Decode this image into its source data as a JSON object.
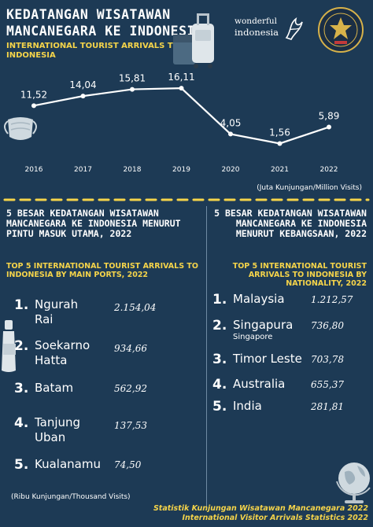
{
  "header": {
    "title": "KEDATANGAN WISATAWAN MANCANEGARA KE INDONESIA",
    "subtitle": "INTERNATIONAL TOURIST ARRIVALS TO INDONESIA",
    "brand_line1": "wonderful",
    "brand_line2": "indonesia"
  },
  "icons": {
    "suitcase": "suitcase-icon",
    "mask": "face-mask-icon",
    "bottle": "bottle-icon",
    "globe": "globe-icon",
    "emblem": "ministry-emblem-icon"
  },
  "colors": {
    "background": "#1d3a55",
    "accent": "#f5d44a",
    "text": "#ffffff",
    "line": "#ffffff"
  },
  "chart_data": [
    {
      "type": "line",
      "x": [
        "2016",
        "2017",
        "2018",
        "2019",
        "2020",
        "2021",
        "2022"
      ],
      "values": [
        11.52,
        14.04,
        15.81,
        16.11,
        4.05,
        1.56,
        5.89
      ],
      "data_labels": [
        "11,52",
        "14,04",
        "15,81",
        "16,11",
        "4,05",
        "1,56",
        "5,89"
      ],
      "unit": "(Juta Kunjungan/Million Visits)",
      "ylim": [
        0,
        18
      ],
      "grid": false
    },
    {
      "type": "table",
      "title": "5 BESAR KEDATANGAN WISATAWAN MANCANEGARA KE INDONESIA MENURUT PINTU MASUK UTAMA, 2022",
      "subtitle": "TOP 5 INTERNATIONAL TOURIST ARRIVALS TO INDONESIA BY MAIN PORTS, 2022",
      "unit": "(Ribu Kunjungan/Thousand Visits)",
      "rows": [
        {
          "rank": "1.",
          "name": "Ngurah Rai",
          "value": "2.154,04"
        },
        {
          "rank": "2.",
          "name": "Soekarno Hatta",
          "value": "934,66"
        },
        {
          "rank": "3.",
          "name": "Batam",
          "value": "562,92"
        },
        {
          "rank": "4.",
          "name": "Tanjung Uban",
          "value": "137,53"
        },
        {
          "rank": "5.",
          "name": "Kualanamu",
          "value": "74,50"
        }
      ]
    },
    {
      "type": "table",
      "title": "5 BESAR KEDATANGAN WISATAWAN MANCANEGARA KE INDONESIA MENURUT KEBANGSAAN, 2022",
      "subtitle": "TOP 5 INTERNATIONAL TOURIST ARRIVALS TO INDONESIA BY NATIONALITY, 2022",
      "rows": [
        {
          "rank": "1.",
          "name": "Malaysia",
          "alias": "",
          "value": "1.212,57"
        },
        {
          "rank": "2.",
          "name": "Singapura",
          "alias": "Singapore",
          "value": "736,80"
        },
        {
          "rank": "3.",
          "name": "Timor Leste",
          "alias": "",
          "value": "703,78"
        },
        {
          "rank": "4.",
          "name": "Australia",
          "alias": "",
          "value": "655,37"
        },
        {
          "rank": "5.",
          "name": "India",
          "alias": "",
          "value": "281,81"
        }
      ]
    }
  ],
  "footer": {
    "line1": "Statistik Kunjungan Wisatawan Mancanegara 2022",
    "line2": "International Visitor Arrivals Statistics 2022"
  }
}
